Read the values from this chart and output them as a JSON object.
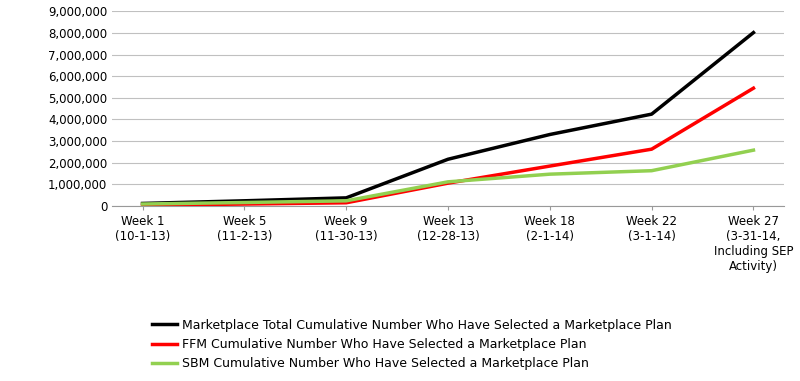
{
  "x_labels": [
    "Week 1\n(10-1-13)",
    "Week 5\n(11-2-13)",
    "Week 9\n(11-30-13)",
    "Week 13\n(12-28-13)",
    "Week 18\n(2-1-14)",
    "Week 22\n(3-1-14)",
    "Week 27\n(3-31-14,\nIncluding SEP\nActivity)"
  ],
  "x_positions": [
    0,
    1,
    2,
    3,
    4,
    5,
    6
  ],
  "total_values": [
    106185,
    229000,
    364682,
    2153421,
    3299504,
    4243119,
    8019763
  ],
  "ffm_values": [
    26794,
    79000,
    137204,
    1046071,
    1837267,
    2620000,
    5445000
  ],
  "sbm_values": [
    79391,
    150000,
    227478,
    1107350,
    1462237,
    1623119,
    2574763
  ],
  "total_color": "#000000",
  "ffm_color": "#FF0000",
  "sbm_color": "#92D050",
  "ylim": [
    0,
    9000000
  ],
  "yticks": [
    0,
    1000000,
    2000000,
    3000000,
    4000000,
    5000000,
    6000000,
    7000000,
    8000000,
    9000000
  ],
  "legend_labels": [
    "Marketplace Total Cumulative Number Who Have Selected a Marketplace Plan",
    "FFM Cumulative Number Who Have Selected a Marketplace Plan",
    "SBM Cumulative Number Who Have Selected a Marketplace Plan"
  ],
  "line_width": 2.5,
  "background_color": "#FFFFFF",
  "grid_color": "#C0C0C0",
  "tick_fontsize": 8.5,
  "legend_fontsize": 9
}
